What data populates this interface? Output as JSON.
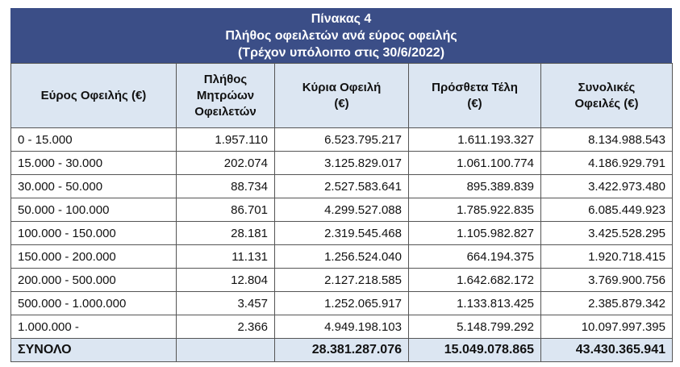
{
  "title": {
    "lines": [
      "Πίνακας 4",
      "Πλήθος οφειλετών ανά εύρος οφειλής",
      "(Τρέχον υπόλοιπο στις 30/6/2022)"
    ]
  },
  "header": [
    "Εύρος Οφειλής (€)",
    "Πλήθος Μητρώων Οφειλετών",
    "Κύρια Οφειλή (€)",
    "Πρόσθετα Τέλη (€)",
    "Συνολικές Οφειλές (€)"
  ],
  "rows": [
    [
      "0 - 15.000",
      "1.957.110",
      "6.523.795.217",
      "1.611.193.327",
      "8.134.988.543"
    ],
    [
      "15.000 - 30.000",
      "202.074",
      "3.125.829.017",
      "1.061.100.774",
      "4.186.929.791"
    ],
    [
      "30.000 - 50.000",
      "88.734",
      "2.527.583.641",
      "895.389.839",
      "3.422.973.480"
    ],
    [
      "50.000 - 100.000",
      "86.701",
      "4.299.527.088",
      "1.785.922.835",
      "6.085.449.923"
    ],
    [
      "100.000 - 150.000",
      "28.181",
      "2.319.545.468",
      "1.105.982.827",
      "3.425.528.295"
    ],
    [
      "150.000 - 200.000",
      "11.131",
      "1.256.524.040",
      "664.194.375",
      "1.920.718.415"
    ],
    [
      "200.000 - 500.000",
      "12.804",
      "2.127.218.585",
      "1.642.682.172",
      "3.769.900.756"
    ],
    [
      "500.000 - 1.000.000",
      "3.457",
      "1.252.065.917",
      "1.133.813.425",
      "2.385.879.342"
    ],
    [
      "1.000.000 -",
      "2.366",
      "4.949.198.103",
      "5.148.799.292",
      "10.097.997.395"
    ]
  ],
  "total": {
    "label": "ΣΥΝΟΛΟ",
    "values": [
      "28.381.287.076",
      "15.049.078.865",
      "43.430.365.941"
    ]
  }
}
